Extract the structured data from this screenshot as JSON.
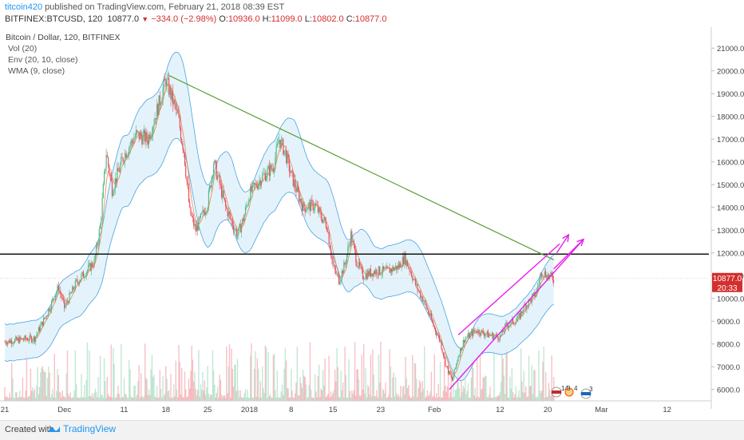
{
  "header": {
    "author": "titcoin420",
    "published_text": " published on TradingView.com, February 21, 2018 08:39 EST",
    "symbol": "BITFINEX:BTCUSD, 120",
    "last": "10877.0",
    "change_arrow": "▼",
    "change": "−334.0 (−2.98%)",
    "o_label": "O:",
    "o_value": "10936.0",
    "h_label": "H:",
    "h_value": "11099.0",
    "l_label": "L:",
    "l_value": "10802.0",
    "c_label": "C:",
    "c_value": "10877.0"
  },
  "legend": {
    "title": "Bitcoin / Dollar, 120, BITFINEX",
    "vol": "Vol (20)",
    "env": "Env (20, 10, close)",
    "wma": "WMA (9, close)"
  },
  "price_badge": {
    "value": "10877.0",
    "countdown": "20:33"
  },
  "event_markers": {
    "a": "14",
    "b": "3",
    "c": "4",
    "d": "3"
  },
  "footer": {
    "created": "Created with",
    "brand": "TradingView"
  },
  "colors": {
    "up": "#53b987",
    "down": "#eb4d5c",
    "band_fill": "#e1f2fb",
    "band_line": "#4aa3df",
    "wma": "#e07b39",
    "trend_green": "#5a9e3a",
    "channel": "#e91ee9",
    "resistance": "#000000",
    "badge": "#d32f2f"
  },
  "chart_data": {
    "type": "candlestick",
    "title": "Bitcoin / Dollar, 120, BITFINEX",
    "ylim": [
      5500,
      21500
    ],
    "y_ticks": [
      6000,
      7000,
      8000,
      9000,
      10000,
      11000,
      12000,
      13000,
      14000,
      15000,
      16000,
      17000,
      18000,
      19000,
      20000,
      21000
    ],
    "y_tick_labels": [
      "6000.0",
      "7000.0",
      "8000.0",
      "9000.0",
      "10000.0",
      "11000.0",
      "12000.0",
      "13000.0",
      "14000.0",
      "15000.0",
      "16000.0",
      "17000.0",
      "18000.0",
      "19000.0",
      "20000.0",
      "21000.0"
    ],
    "x_labels": [
      {
        "label": "21",
        "day": 0
      },
      {
        "label": "Dec",
        "day": 10
      },
      {
        "label": "11",
        "day": 20
      },
      {
        "label": "18",
        "day": 27
      },
      {
        "label": "25",
        "day": 34
      },
      {
        "label": "2018",
        "day": 41
      },
      {
        "label": "8",
        "day": 48
      },
      {
        "label": "15",
        "day": 55
      },
      {
        "label": "23",
        "day": 63
      },
      {
        "label": "Feb",
        "day": 72
      },
      {
        "label": "12",
        "day": 83
      },
      {
        "label": "20",
        "day": 91
      },
      {
        "label": "Mar",
        "day": 100
      },
      {
        "label": "12",
        "day": 111
      }
    ],
    "x_range": [
      0,
      118
    ],
    "price_path": [
      {
        "d": 0,
        "p": 8100
      },
      {
        "d": 3,
        "p": 8200
      },
      {
        "d": 5,
        "p": 8250
      },
      {
        "d": 7,
        "p": 9300
      },
      {
        "d": 9,
        "p": 10500
      },
      {
        "d": 10,
        "p": 9600
      },
      {
        "d": 12,
        "p": 10700
      },
      {
        "d": 15,
        "p": 11600
      },
      {
        "d": 16,
        "p": 13200
      },
      {
        "d": 17,
        "p": 16400
      },
      {
        "d": 18,
        "p": 14800
      },
      {
        "d": 20,
        "p": 16300
      },
      {
        "d": 22,
        "p": 17200
      },
      {
        "d": 24,
        "p": 17000
      },
      {
        "d": 26,
        "p": 18700
      },
      {
        "d": 27,
        "p": 19600
      },
      {
        "d": 29,
        "p": 18000
      },
      {
        "d": 30,
        "p": 16500
      },
      {
        "d": 31,
        "p": 13800
      },
      {
        "d": 32,
        "p": 13000
      },
      {
        "d": 34,
        "p": 14200
      },
      {
        "d": 35,
        "p": 16000
      },
      {
        "d": 37,
        "p": 14000
      },
      {
        "d": 39,
        "p": 12800
      },
      {
        "d": 40,
        "p": 13500
      },
      {
        "d": 41,
        "p": 14600
      },
      {
        "d": 43,
        "p": 15300
      },
      {
        "d": 45,
        "p": 15800
      },
      {
        "d": 46,
        "p": 17000
      },
      {
        "d": 47,
        "p": 16400
      },
      {
        "d": 48,
        "p": 15400
      },
      {
        "d": 50,
        "p": 14000
      },
      {
        "d": 52,
        "p": 14100
      },
      {
        "d": 53,
        "p": 13600
      },
      {
        "d": 54,
        "p": 13200
      },
      {
        "d": 55,
        "p": 11400
      },
      {
        "d": 56,
        "p": 10800
      },
      {
        "d": 57,
        "p": 11500
      },
      {
        "d": 58,
        "p": 12800
      },
      {
        "d": 59,
        "p": 11600
      },
      {
        "d": 60,
        "p": 11000
      },
      {
        "d": 62,
        "p": 11200
      },
      {
        "d": 64,
        "p": 11200
      },
      {
        "d": 66,
        "p": 11400
      },
      {
        "d": 67,
        "p": 11800
      },
      {
        "d": 68,
        "p": 11200
      },
      {
        "d": 69,
        "p": 10500
      },
      {
        "d": 70,
        "p": 10000
      },
      {
        "d": 71,
        "p": 9400
      },
      {
        "d": 72,
        "p": 8700
      },
      {
        "d": 73,
        "p": 8100
      },
      {
        "d": 74,
        "p": 7000
      },
      {
        "d": 75,
        "p": 6400
      },
      {
        "d": 76,
        "p": 7500
      },
      {
        "d": 77,
        "p": 8200
      },
      {
        "d": 79,
        "p": 8600
      },
      {
        "d": 81,
        "p": 8400
      },
      {
        "d": 83,
        "p": 8300
      },
      {
        "d": 84,
        "p": 8800
      },
      {
        "d": 86,
        "p": 9100
      },
      {
        "d": 87,
        "p": 9600
      },
      {
        "d": 89,
        "p": 10200
      },
      {
        "d": 90,
        "p": 11200
      },
      {
        "d": 91,
        "p": 11000
      },
      {
        "d": 92,
        "p": 10877
      }
    ],
    "last_price": 10877,
    "resistance_level": 11950,
    "trendline": [
      {
        "d": 27.5,
        "p": 19800
      },
      {
        "d": 92,
        "p": 11700
      }
    ],
    "channel_lower": [
      {
        "d": 74.5,
        "p": 6000
      },
      {
        "d": 97,
        "p": 12600
      }
    ],
    "channel_upper": [
      {
        "d": 76,
        "p": 8400
      },
      {
        "d": 93,
        "p": 12400
      }
    ],
    "arrow_1": [
      {
        "d": 92.5,
        "p": 12000
      },
      {
        "d": 94.5,
        "p": 12800
      }
    ],
    "arrow_2": [
      {
        "d": 92,
        "p": 11300
      },
      {
        "d": 97,
        "p": 12600
      }
    ]
  }
}
